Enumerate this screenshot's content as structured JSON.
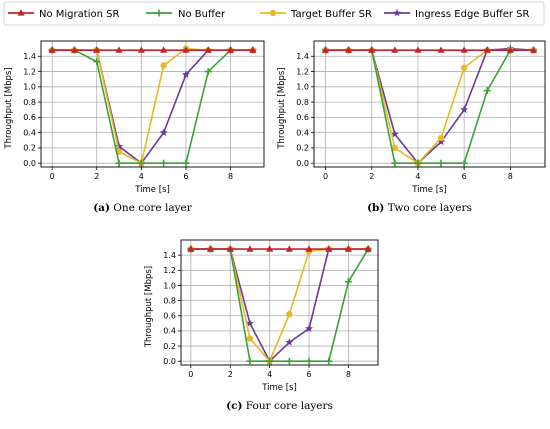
{
  "legend": {
    "items": [
      {
        "label": "No Migration SR",
        "color": "#c0272d",
        "marker": "triangle"
      },
      {
        "label": "No Buffer",
        "color": "#3aa335",
        "marker": "plus"
      },
      {
        "label": "Target Buffer SR",
        "color": "#e8b923",
        "marker": "circle"
      },
      {
        "label": "Ingress Edge Buffer SR",
        "color": "#6a3a9a",
        "marker": "star"
      }
    ]
  },
  "chart_data": [
    {
      "type": "line",
      "caption_label": "(a)",
      "caption_text": "One core layer",
      "xlabel": "Time [s]",
      "ylabel": "Throughput [Mbps]",
      "xlim": [
        -0.5,
        9.5
      ],
      "ylim": [
        -0.05,
        1.6
      ],
      "xticks": [
        0,
        2,
        4,
        6,
        8
      ],
      "yticks": [
        0.0,
        0.2,
        0.4,
        0.6,
        0.8,
        1.0,
        1.2,
        1.4
      ],
      "grid": true,
      "x": [
        0,
        1,
        2,
        3,
        4,
        5,
        6,
        7,
        8,
        9
      ],
      "series": [
        {
          "name": "No Migration SR",
          "values": [
            1.48,
            1.48,
            1.48,
            1.48,
            1.48,
            1.48,
            1.48,
            1.48,
            1.48,
            1.48
          ]
        },
        {
          "name": "No Buffer",
          "values": [
            1.48,
            1.48,
            1.33,
            0.0,
            0.0,
            0.0,
            0.0,
            1.2,
            1.48,
            1.48
          ]
        },
        {
          "name": "Target Buffer SR",
          "values": [
            1.48,
            1.48,
            1.48,
            0.15,
            0.0,
            1.28,
            1.5,
            1.48,
            1.48,
            1.48
          ]
        },
        {
          "name": "Ingress Edge Buffer SR",
          "values": [
            1.48,
            1.48,
            1.48,
            0.22,
            0.0,
            0.4,
            1.16,
            1.48,
            1.48,
            1.48
          ]
        }
      ]
    },
    {
      "type": "line",
      "caption_label": "(b)",
      "caption_text": "Two core layers",
      "xlabel": "Time [s]",
      "ylabel": "Throughput [Mbps]",
      "xlim": [
        -0.5,
        9.5
      ],
      "ylim": [
        -0.05,
        1.6
      ],
      "xticks": [
        0,
        2,
        4,
        6,
        8
      ],
      "yticks": [
        0.0,
        0.2,
        0.4,
        0.6,
        0.8,
        1.0,
        1.2,
        1.4
      ],
      "grid": true,
      "x": [
        0,
        1,
        2,
        3,
        4,
        5,
        6,
        7,
        8,
        9
      ],
      "series": [
        {
          "name": "No Migration SR",
          "values": [
            1.48,
            1.48,
            1.48,
            1.48,
            1.48,
            1.48,
            1.48,
            1.48,
            1.48,
            1.48
          ]
        },
        {
          "name": "No Buffer",
          "values": [
            1.48,
            1.48,
            1.48,
            0.0,
            0.0,
            0.0,
            0.0,
            0.95,
            1.48,
            1.48
          ]
        },
        {
          "name": "Target Buffer SR",
          "values": [
            1.48,
            1.48,
            1.48,
            0.2,
            0.0,
            0.33,
            1.25,
            1.48,
            1.48,
            1.48
          ]
        },
        {
          "name": "Ingress Edge Buffer SR",
          "values": [
            1.48,
            1.48,
            1.48,
            0.38,
            0.0,
            0.28,
            0.7,
            1.48,
            1.5,
            1.48
          ]
        }
      ]
    },
    {
      "type": "line",
      "caption_label": "(c)",
      "caption_text": "Four core layers",
      "xlabel": "Time [s]",
      "ylabel": "Throughput [Mbps]",
      "xlim": [
        -0.5,
        9.5
      ],
      "ylim": [
        -0.05,
        1.6
      ],
      "xticks": [
        0,
        2,
        4,
        6,
        8
      ],
      "yticks": [
        0.0,
        0.2,
        0.4,
        0.6,
        0.8,
        1.0,
        1.2,
        1.4
      ],
      "grid": true,
      "x": [
        0,
        1,
        2,
        3,
        4,
        5,
        6,
        7,
        8,
        9
      ],
      "series": [
        {
          "name": "No Migration SR",
          "values": [
            1.48,
            1.48,
            1.48,
            1.48,
            1.48,
            1.48,
            1.48,
            1.48,
            1.48,
            1.48
          ]
        },
        {
          "name": "No Buffer",
          "values": [
            1.48,
            1.48,
            1.48,
            0.0,
            0.0,
            0.0,
            0.0,
            0.0,
            1.05,
            1.48
          ]
        },
        {
          "name": "Target Buffer SR",
          "values": [
            1.48,
            1.48,
            1.48,
            0.3,
            0.0,
            0.62,
            1.45,
            1.48,
            1.48,
            1.48
          ]
        },
        {
          "name": "Ingress Edge Buffer SR",
          "values": [
            1.48,
            1.48,
            1.48,
            0.5,
            0.0,
            0.25,
            0.43,
            1.48,
            1.48,
            1.48
          ]
        }
      ]
    }
  ]
}
